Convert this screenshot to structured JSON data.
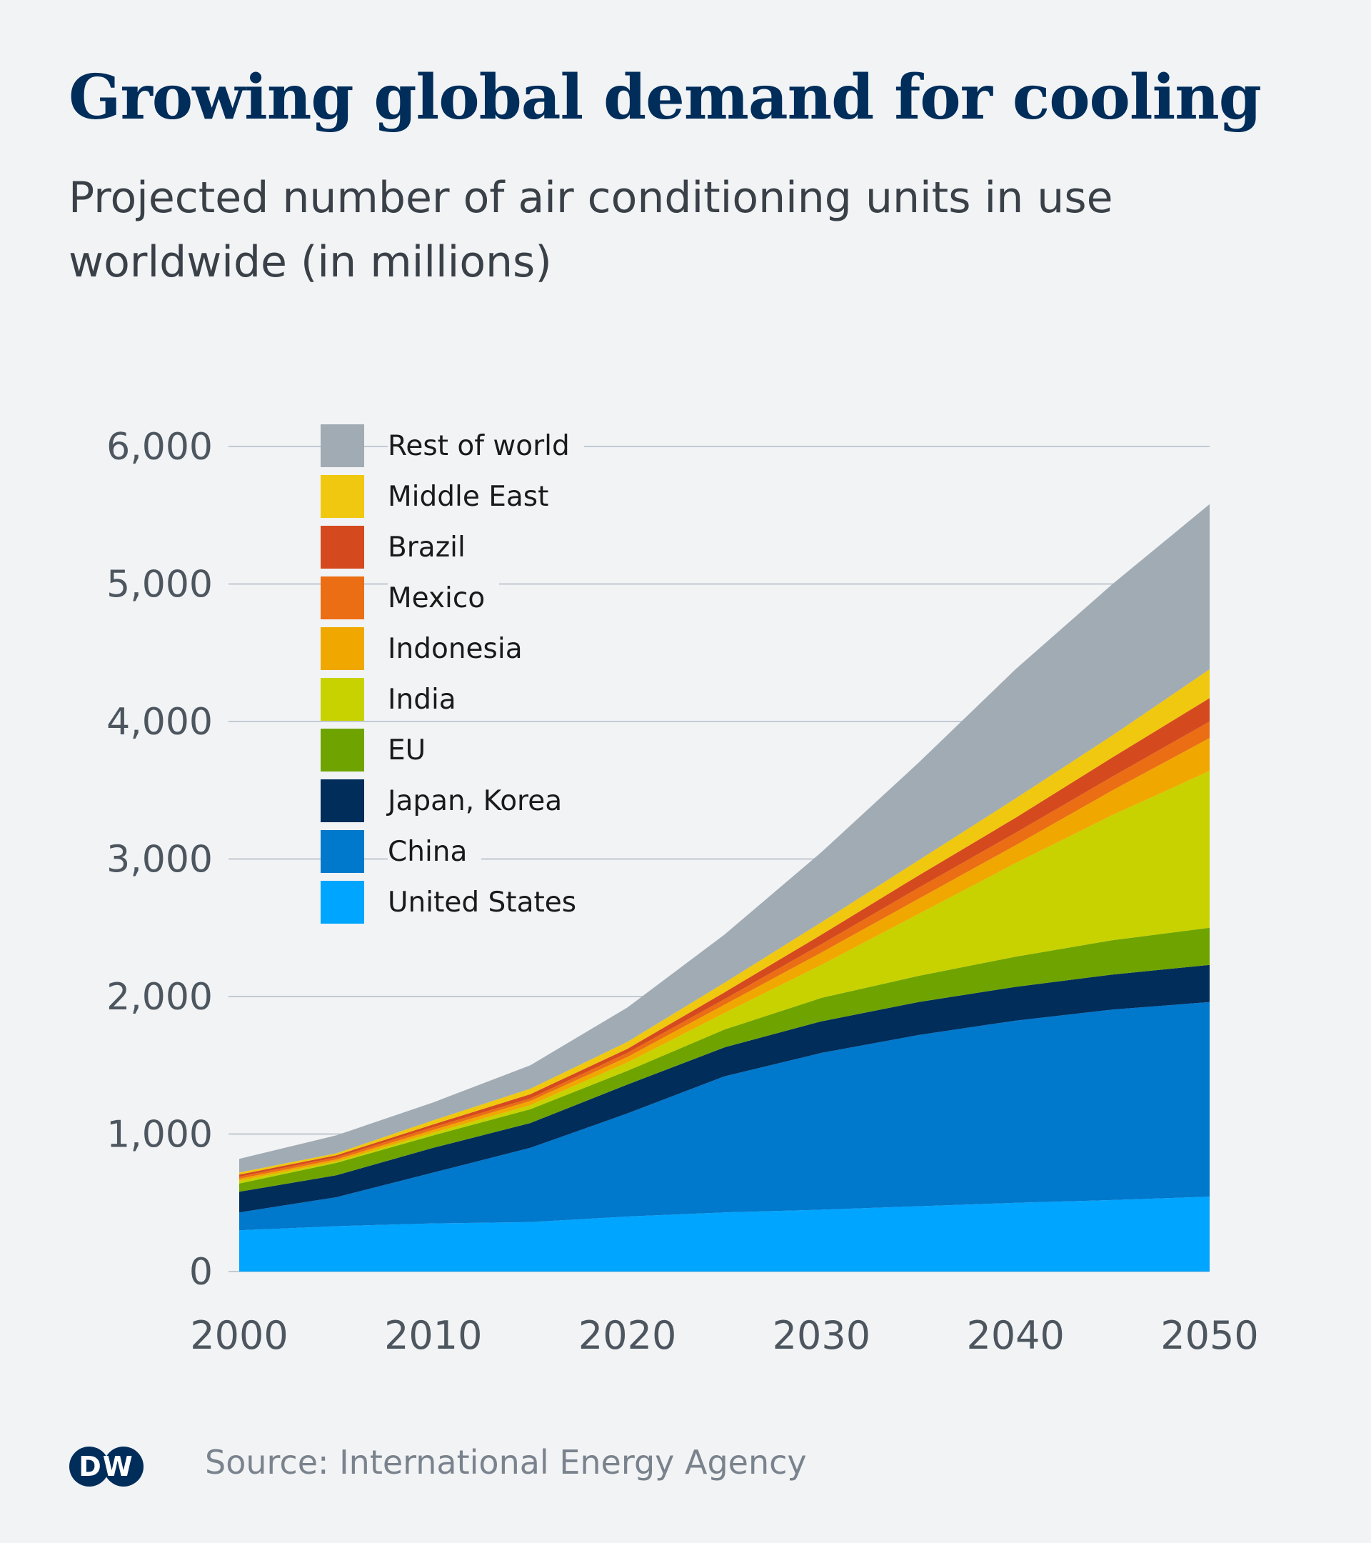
{
  "title": "Growing global demand for cooling",
  "subtitle": "Projected number of air conditioning units in use worldwide (in millions)",
  "source": "Source: International Energy Agency",
  "logo_text": "DW",
  "chart_data": {
    "type": "area",
    "stacked": true,
    "title": "Growing global demand for cooling",
    "subtitle": "Projected number of air conditioning units in use worldwide (in millions)",
    "xlabel": "",
    "ylabel": "",
    "x": [
      2000,
      2005,
      2010,
      2015,
      2020,
      2025,
      2030,
      2035,
      2040,
      2045,
      2050
    ],
    "x_ticks": [
      "2000",
      "2010",
      "2020",
      "2030",
      "2040",
      "2050"
    ],
    "y_ticks": [
      "0",
      "1,000",
      "2,000",
      "3,000",
      "4,000",
      "5,000",
      "6,000"
    ],
    "xlim": [
      2000,
      2050
    ],
    "ylim": [
      0,
      6000
    ],
    "grid": true,
    "legend_position": "top-left",
    "series": [
      {
        "name": "United States",
        "color": "#00a5ff",
        "values": [
          300,
          330,
          350,
          360,
          400,
          430,
          450,
          475,
          500,
          520,
          545
        ]
      },
      {
        "name": "China",
        "color": "#0078cc",
        "values": [
          130,
          210,
          370,
          540,
          750,
          990,
          1140,
          1245,
          1325,
          1385,
          1415
        ]
      },
      {
        "name": "Japan, Korea",
        "color": "#002d5a",
        "values": [
          150,
          160,
          180,
          180,
          210,
          210,
          230,
          240,
          245,
          255,
          270
        ]
      },
      {
        "name": "EU",
        "color": "#6fa400",
        "values": [
          60,
          90,
          90,
          100,
          100,
          130,
          170,
          190,
          220,
          250,
          270
        ]
      },
      {
        "name": "India",
        "color": "#c8d200",
        "values": [
          20,
          10,
          20,
          30,
          60,
          120,
          240,
          450,
          680,
          910,
          1140
        ]
      },
      {
        "name": "Indonesia",
        "color": "#f0a800",
        "values": [
          15,
          15,
          20,
          30,
          40,
          60,
          90,
          110,
          130,
          180,
          240
        ]
      },
      {
        "name": "Mexico",
        "color": "#eb6e14",
        "values": [
          15,
          15,
          20,
          20,
          30,
          40,
          60,
          80,
          90,
          100,
          120
        ]
      },
      {
        "name": "Brazil",
        "color": "#d44a1e",
        "values": [
          15,
          15,
          20,
          30,
          30,
          50,
          70,
          90,
          110,
          140,
          170
        ]
      },
      {
        "name": "Middle East",
        "color": "#f0c80f",
        "values": [
          15,
          15,
          30,
          40,
          50,
          70,
          90,
          110,
          140,
          160,
          210
        ]
      },
      {
        "name": "Rest of world",
        "color": "#a1abb3",
        "values": [
          100,
          130,
          130,
          170,
          250,
          350,
          510,
          710,
          940,
          1100,
          1200
        ]
      }
    ]
  }
}
